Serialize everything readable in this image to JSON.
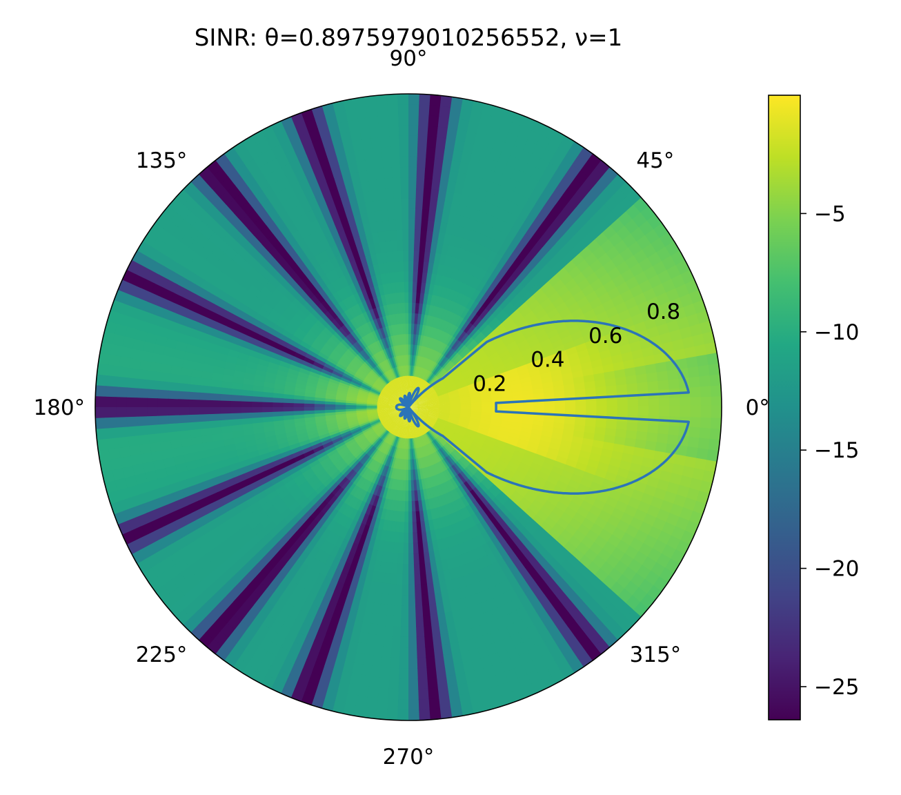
{
  "chart_data": {
    "type": "polar-heatmap",
    "title": "SINR: θ=0.8975979010256552, ν=1",
    "theta_tick_labels": [
      {
        "deg": 0,
        "label": "0°"
      },
      {
        "deg": 45,
        "label": "45°"
      },
      {
        "deg": 90,
        "label": "90°"
      },
      {
        "deg": 135,
        "label": "135°"
      },
      {
        "deg": 180,
        "label": "180°"
      },
      {
        "deg": 225,
        "label": "225°"
      },
      {
        "deg": 270,
        "label": "270°"
      },
      {
        "deg": 315,
        "label": "315°"
      }
    ],
    "r_tick_labels": [
      {
        "r": 0.2,
        "label": "0.2"
      },
      {
        "r": 0.4,
        "label": "0.4"
      },
      {
        "r": 0.6,
        "label": "0.6"
      },
      {
        "r": 0.8,
        "label": "0.8"
      }
    ],
    "r_label_angle_deg": 22.5,
    "rlim": [
      0,
      1
    ],
    "grid": false,
    "colormap": "viridis",
    "colorbar": {
      "range": [
        -26.4,
        0
      ],
      "ticks": [
        {
          "value": -5,
          "label": "−5"
        },
        {
          "value": -10,
          "label": "−10"
        },
        {
          "value": -15,
          "label": "−15"
        },
        {
          "value": -20,
          "label": "−20"
        },
        {
          "value": -25,
          "label": "−25"
        }
      ]
    },
    "pattern": {
      "steer_deg": 0,
      "main_lobe_halfwidth_deg": 42,
      "null_angles_deg": [
        52.6,
        85,
        109.5,
        130,
        155,
        180,
        205,
        230,
        250.5,
        275,
        307.4
      ],
      "peak_db": 0,
      "floor_db": -26.4
    },
    "line_color": "#2b74b8"
  }
}
